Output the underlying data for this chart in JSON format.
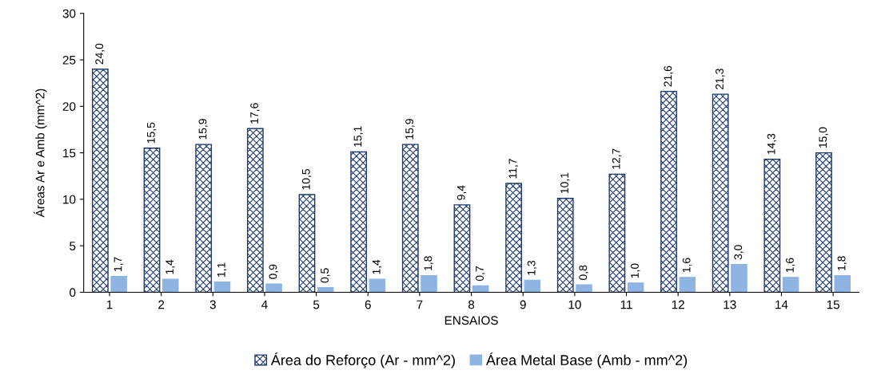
{
  "chart_data": {
    "type": "bar",
    "xlabel": "ENSAIOS",
    "ylabel": "Áreas Ar e Amb (mm^2)",
    "categories": [
      "1",
      "2",
      "3",
      "4",
      "5",
      "6",
      "7",
      "8",
      "9",
      "10",
      "11",
      "12",
      "13",
      "14",
      "15"
    ],
    "series": [
      {
        "name": "Área do Reforço (Ar - mm^2)",
        "color": "#1f3a6e",
        "values": [
          24.0,
          15.5,
          15.9,
          17.6,
          10.5,
          15.1,
          15.9,
          9.4,
          11.7,
          10.1,
          12.7,
          21.6,
          21.3,
          14.3,
          15.0
        ],
        "value_labels": [
          "24,0",
          "15,5",
          "15,9",
          "17,6",
          "10,5",
          "15,1",
          "15,9",
          "9,4",
          "11,7",
          "10,1",
          "12,7",
          "21,6",
          "21,3",
          "14,3",
          "15,0"
        ]
      },
      {
        "name": "Área Metal Base (Amb - mm^2)",
        "color": "#8db4e2",
        "values": [
          1.7,
          1.4,
          1.1,
          0.9,
          0.5,
          1.4,
          1.8,
          0.7,
          1.3,
          0.8,
          1.0,
          1.6,
          3.0,
          1.6,
          1.8
        ],
        "value_labels": [
          "1,7",
          "1,4",
          "1,1",
          "0,9",
          "0,5",
          "1,4",
          "1,8",
          "0,7",
          "1,3",
          "0,8",
          "1,0",
          "1,6",
          "3,0",
          "1,6",
          "1,8"
        ]
      }
    ],
    "ylim": [
      0,
      30
    ],
    "yticks": [
      0,
      5,
      10,
      15,
      20,
      25,
      30
    ],
    "grid": false,
    "legend": "bottom"
  }
}
